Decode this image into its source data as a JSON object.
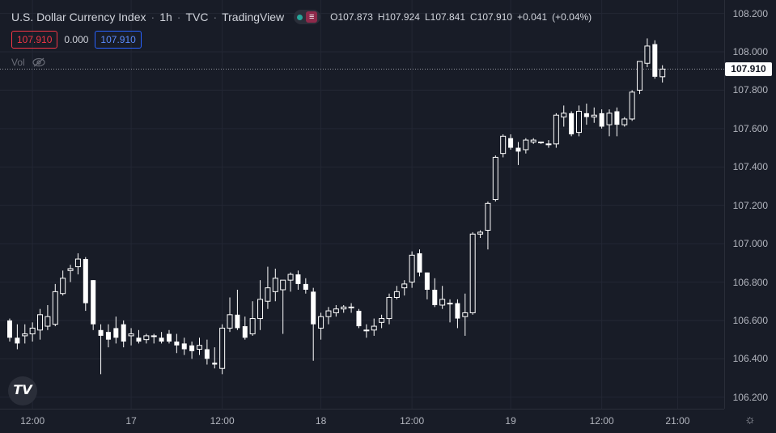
{
  "symbol": {
    "name": "U.S. Dollar Currency Index",
    "interval": "1h",
    "exchange": "TVC",
    "source": "TradingView"
  },
  "ohlc": {
    "o_label": "O",
    "o": "107.873",
    "h_label": "H",
    "h": "107.924",
    "l_label": "L",
    "l": "107.841",
    "c_label": "C",
    "c": "107.910",
    "change": "+0.041",
    "change_pct": "(+0.04%)"
  },
  "trade": {
    "bid": "107.910",
    "spread": "0.000",
    "ask": "107.910"
  },
  "volume": {
    "label": "Vol"
  },
  "last_price": "107.910",
  "colors": {
    "background": "#181c27",
    "candle": "#ffffff",
    "bid": "#f23645",
    "ask": "#2962ff"
  },
  "icons": {
    "logo": "tradingview-logo-icon",
    "visibility": "eye-off-icon",
    "settings": "gear-icon"
  },
  "chart_data": {
    "type": "candlestick",
    "ylim": [
      106.14,
      108.27
    ],
    "yticks": [
      "108.200",
      "108.000",
      "107.800",
      "107.600",
      "107.400",
      "107.200",
      "107.000",
      "106.800",
      "106.600",
      "106.400",
      "106.200"
    ],
    "ytick_values": [
      108.2,
      108.0,
      107.8,
      107.6,
      107.4,
      107.2,
      107.0,
      106.8,
      106.6,
      106.4,
      106.2
    ],
    "xticks": [
      "12:00",
      "17",
      "12:00",
      "18",
      "12:00",
      "19",
      "12:00",
      "21:00"
    ],
    "xtick_index": [
      3,
      16,
      28,
      41,
      53,
      66,
      78,
      88
    ],
    "candles": [
      [
        106.6,
        106.61,
        106.49,
        106.51
      ],
      [
        106.51,
        106.58,
        106.45,
        106.48
      ],
      [
        106.52,
        106.58,
        106.48,
        106.53
      ],
      [
        106.53,
        106.59,
        106.49,
        106.56
      ],
      [
        106.55,
        106.66,
        106.5,
        106.63
      ],
      [
        106.57,
        106.68,
        106.55,
        106.62
      ],
      [
        106.58,
        106.79,
        106.57,
        106.75
      ],
      [
        106.74,
        106.86,
        106.73,
        106.82
      ],
      [
        106.86,
        106.89,
        106.8,
        106.87
      ],
      [
        106.88,
        106.95,
        106.84,
        106.92
      ],
      [
        106.92,
        106.93,
        106.65,
        106.69
      ],
      [
        106.81,
        106.81,
        106.55,
        106.58
      ],
      [
        106.55,
        106.58,
        106.32,
        106.52
      ],
      [
        106.54,
        106.58,
        106.46,
        106.5
      ],
      [
        106.56,
        106.62,
        106.48,
        106.51
      ],
      [
        106.58,
        106.6,
        106.46,
        106.49
      ],
      [
        106.52,
        106.56,
        106.47,
        106.53
      ],
      [
        106.51,
        106.55,
        106.48,
        106.49
      ],
      [
        106.5,
        106.53,
        106.48,
        106.52
      ],
      [
        106.52,
        106.53,
        106.48,
        106.52
      ],
      [
        106.51,
        106.54,
        106.48,
        106.49
      ],
      [
        106.53,
        106.55,
        106.48,
        106.49
      ],
      [
        106.49,
        106.53,
        106.43,
        106.47
      ],
      [
        106.48,
        106.51,
        106.42,
        106.45
      ],
      [
        106.47,
        106.49,
        106.4,
        106.44
      ],
      [
        106.45,
        106.51,
        106.42,
        106.47
      ],
      [
        106.45,
        106.5,
        106.37,
        106.4
      ],
      [
        106.38,
        106.46,
        106.35,
        106.37
      ],
      [
        106.35,
        106.58,
        106.32,
        106.56
      ],
      [
        106.56,
        106.72,
        106.54,
        106.63
      ],
      [
        106.63,
        106.76,
        106.55,
        106.56
      ],
      [
        106.57,
        106.62,
        106.5,
        106.51
      ],
      [
        106.53,
        106.7,
        106.52,
        106.61
      ],
      [
        106.61,
        106.81,
        106.55,
        106.71
      ],
      [
        106.7,
        106.88,
        106.66,
        106.77
      ],
      [
        106.75,
        106.87,
        106.7,
        106.82
      ],
      [
        106.76,
        106.81,
        106.53,
        106.81
      ],
      [
        106.81,
        106.85,
        106.75,
        106.84
      ],
      [
        106.84,
        106.86,
        106.76,
        106.79
      ],
      [
        106.79,
        106.82,
        106.74,
        106.76
      ],
      [
        106.75,
        106.77,
        106.39,
        106.58
      ],
      [
        106.56,
        106.64,
        106.5,
        106.62
      ],
      [
        106.62,
        106.67,
        106.58,
        106.65
      ],
      [
        106.64,
        106.68,
        106.62,
        106.66
      ],
      [
        106.66,
        106.68,
        106.64,
        106.67
      ],
      [
        106.67,
        106.69,
        106.64,
        106.67
      ],
      [
        106.65,
        106.66,
        106.56,
        106.57
      ],
      [
        106.55,
        106.58,
        106.51,
        106.55
      ],
      [
        106.55,
        106.61,
        106.52,
        106.57
      ],
      [
        106.59,
        106.63,
        106.56,
        106.61
      ],
      [
        106.61,
        106.74,
        106.58,
        106.72
      ],
      [
        106.72,
        106.78,
        106.71,
        106.75
      ],
      [
        106.77,
        106.81,
        106.73,
        106.79
      ],
      [
        106.8,
        106.96,
        106.77,
        106.94
      ],
      [
        106.95,
        106.97,
        106.83,
        106.85
      ],
      [
        106.85,
        106.85,
        106.71,
        106.76
      ],
      [
        106.76,
        106.82,
        106.67,
        106.68
      ],
      [
        106.68,
        106.78,
        106.66,
        106.71
      ],
      [
        106.69,
        106.71,
        106.59,
        106.69
      ],
      [
        106.69,
        106.71,
        106.56,
        106.61
      ],
      [
        106.62,
        106.74,
        106.52,
        106.64
      ],
      [
        106.64,
        107.06,
        106.63,
        107.05
      ],
      [
        107.05,
        107.07,
        107.03,
        107.06
      ],
      [
        107.07,
        107.22,
        106.97,
        107.21
      ],
      [
        107.23,
        107.46,
        107.22,
        107.45
      ],
      [
        107.47,
        107.57,
        107.45,
        107.56
      ],
      [
        107.55,
        107.57,
        107.49,
        107.5
      ],
      [
        107.5,
        107.53,
        107.41,
        107.48
      ],
      [
        107.49,
        107.55,
        107.47,
        107.54
      ],
      [
        107.53,
        107.55,
        107.52,
        107.54
      ],
      [
        107.53,
        107.53,
        107.52,
        107.53
      ],
      [
        107.52,
        107.54,
        107.5,
        107.52
      ],
      [
        107.52,
        107.68,
        107.5,
        107.67
      ],
      [
        107.66,
        107.72,
        107.61,
        107.68
      ],
      [
        107.68,
        107.69,
        107.56,
        107.57
      ],
      [
        107.58,
        107.72,
        107.56,
        107.69
      ],
      [
        107.68,
        107.73,
        107.62,
        107.66
      ],
      [
        107.66,
        107.71,
        107.63,
        107.67
      ],
      [
        107.68,
        107.7,
        107.6,
        107.61
      ],
      [
        107.62,
        107.7,
        107.56,
        107.68
      ],
      [
        107.69,
        107.71,
        107.56,
        107.62
      ],
      [
        107.62,
        107.66,
        107.61,
        107.65
      ],
      [
        107.65,
        107.8,
        107.64,
        107.79
      ],
      [
        107.8,
        107.95,
        107.78,
        107.95
      ],
      [
        107.94,
        108.07,
        107.92,
        108.03
      ],
      [
        108.04,
        108.06,
        107.86,
        107.87
      ],
      [
        107.87,
        107.93,
        107.84,
        107.91
      ]
    ]
  }
}
